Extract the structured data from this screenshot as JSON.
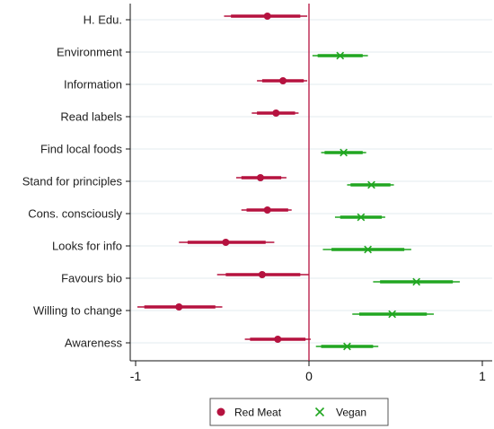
{
  "chart_data": {
    "type": "scatter",
    "subtype": "coefficient-plot",
    "categories": [
      "H. Edu.",
      "Environment",
      "Information",
      "Read labels",
      "Find local foods",
      "Stand for principles",
      "Cons. consciously",
      "Looks for info",
      "Favours bio",
      "Willing to change",
      "Awareness"
    ],
    "x_ticks": [
      -1,
      0,
      1
    ],
    "x_tick_labels": [
      "-1",
      "0",
      "1"
    ],
    "xlim": [
      -1.05,
      1.05
    ],
    "reference_line_x": 0,
    "grid": "horizontal",
    "legend_placement": "bottom",
    "series": [
      {
        "name": "Red Meat",
        "marker": "dot",
        "color": "#b5123f",
        "points": [
          {
            "category": "H. Edu.",
            "estimate": -0.24,
            "ci_low": -0.49,
            "ci_high": -0.01,
            "ci90_low": -0.45,
            "ci90_high": -0.05
          },
          {
            "category": "Information",
            "estimate": -0.15,
            "ci_low": -0.3,
            "ci_high": -0.01,
            "ci90_low": -0.27,
            "ci90_high": -0.03
          },
          {
            "category": "Read labels",
            "estimate": -0.19,
            "ci_low": -0.33,
            "ci_high": -0.06,
            "ci90_low": -0.3,
            "ci90_high": -0.08
          },
          {
            "category": "Stand for principles",
            "estimate": -0.28,
            "ci_low": -0.42,
            "ci_high": -0.13,
            "ci90_low": -0.39,
            "ci90_high": -0.16
          },
          {
            "category": "Cons. consciously",
            "estimate": -0.24,
            "ci_low": -0.39,
            "ci_high": -0.1,
            "ci90_low": -0.36,
            "ci90_high": -0.12
          },
          {
            "category": "Looks for info",
            "estimate": -0.48,
            "ci_low": -0.75,
            "ci_high": -0.2,
            "ci90_low": -0.7,
            "ci90_high": -0.25
          },
          {
            "category": "Favours bio",
            "estimate": -0.27,
            "ci_low": -0.53,
            "ci_high": -0.0,
            "ci90_low": -0.48,
            "ci90_high": -0.05
          },
          {
            "category": "Willing to change",
            "estimate": -0.75,
            "ci_low": -0.99,
            "ci_high": -0.5,
            "ci90_low": -0.95,
            "ci90_high": -0.54
          },
          {
            "category": "Awareness",
            "estimate": -0.18,
            "ci_low": -0.37,
            "ci_high": 0.01,
            "ci90_low": -0.34,
            "ci90_high": -0.02
          }
        ]
      },
      {
        "name": "Vegan",
        "marker": "x",
        "color": "#21a621",
        "points": [
          {
            "category": "Environment",
            "estimate": 0.18,
            "ci_low": 0.02,
            "ci_high": 0.34,
            "ci90_low": 0.05,
            "ci90_high": 0.31
          },
          {
            "category": "Find local foods",
            "estimate": 0.2,
            "ci_low": 0.07,
            "ci_high": 0.33,
            "ci90_low": 0.09,
            "ci90_high": 0.31
          },
          {
            "category": "Stand for principles",
            "estimate": 0.36,
            "ci_low": 0.22,
            "ci_high": 0.49,
            "ci90_low": 0.24,
            "ci90_high": 0.47
          },
          {
            "category": "Cons. consciously",
            "estimate": 0.3,
            "ci_low": 0.15,
            "ci_high": 0.44,
            "ci90_low": 0.18,
            "ci90_high": 0.42
          },
          {
            "category": "Looks for info",
            "estimate": 0.34,
            "ci_low": 0.08,
            "ci_high": 0.59,
            "ci90_low": 0.13,
            "ci90_high": 0.55
          },
          {
            "category": "Favours bio",
            "estimate": 0.62,
            "ci_low": 0.37,
            "ci_high": 0.87,
            "ci90_low": 0.41,
            "ci90_high": 0.83
          },
          {
            "category": "Willing to change",
            "estimate": 0.48,
            "ci_low": 0.25,
            "ci_high": 0.72,
            "ci90_low": 0.29,
            "ci90_high": 0.68
          },
          {
            "category": "Awareness",
            "estimate": 0.22,
            "ci_low": 0.04,
            "ci_high": 0.4,
            "ci90_low": 0.07,
            "ci90_high": 0.37
          }
        ]
      }
    ]
  }
}
